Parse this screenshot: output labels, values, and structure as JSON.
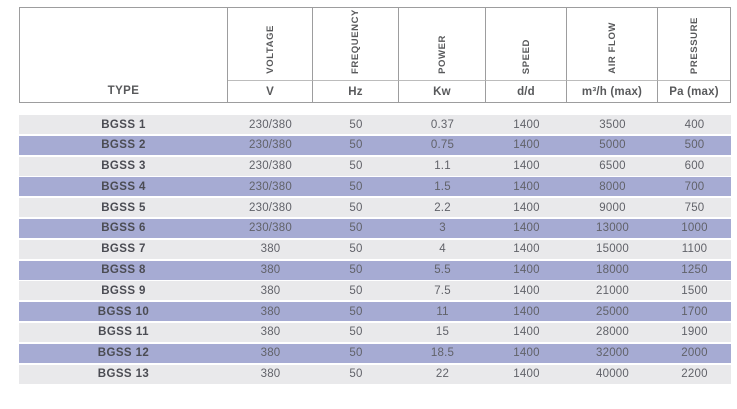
{
  "table": {
    "columns": [
      {
        "key": "type",
        "label": "TYPE",
        "unit": ""
      },
      {
        "key": "voltage",
        "label": "VOLTAGE",
        "unit": "V"
      },
      {
        "key": "frequency",
        "label": "FREQUENCY",
        "unit": "Hz"
      },
      {
        "key": "power",
        "label": "POWER",
        "unit": "Kw"
      },
      {
        "key": "speed",
        "label": "SPEED",
        "unit": "d/d"
      },
      {
        "key": "air-flow",
        "label": "AIR FLOW",
        "unit": "m³/h (max)"
      },
      {
        "key": "pressure",
        "label": "PRESSURE",
        "unit": "Pa (max)"
      }
    ],
    "rows": [
      [
        "BGSS 1",
        "230/380",
        "50",
        "0.37",
        "1400",
        "3500",
        "400"
      ],
      [
        "BGSS 2",
        "230/380",
        "50",
        "0.75",
        "1400",
        "5000",
        "500"
      ],
      [
        "BGSS 3",
        "230/380",
        "50",
        "1.1",
        "1400",
        "6500",
        "600"
      ],
      [
        "BGSS 4",
        "230/380",
        "50",
        "1.5",
        "1400",
        "8000",
        "700"
      ],
      [
        "BGSS 5",
        "230/380",
        "50",
        "2.2",
        "1400",
        "9000",
        "750"
      ],
      [
        "BGSS 6",
        "230/380",
        "50",
        "3",
        "1400",
        "13000",
        "1000"
      ],
      [
        "BGSS 7",
        "380",
        "50",
        "4",
        "1400",
        "15000",
        "1100"
      ],
      [
        "BGSS 8",
        "380",
        "50",
        "5.5",
        "1400",
        "18000",
        "1250"
      ],
      [
        "BGSS 9",
        "380",
        "50",
        "7.5",
        "1400",
        "21000",
        "1500"
      ],
      [
        "BGSS 10",
        "380",
        "50",
        "11",
        "1400",
        "25000",
        "1700"
      ],
      [
        "BGSS 11",
        "380",
        "50",
        "15",
        "1400",
        "28000",
        "1900"
      ],
      [
        "BGSS 12",
        "380",
        "50",
        "18.5",
        "1400",
        "32000",
        "2000"
      ],
      [
        "BGSS 13",
        "380",
        "50",
        "22",
        "1400",
        "40000",
        "2200"
      ]
    ],
    "colors": {
      "row_gray": "#e9e9eb",
      "row_lavender": "#a6abd3",
      "border": "#9d9d9e",
      "border_light": "#bcbcbc",
      "header_text": "#58595b",
      "cell_text": "#616269",
      "type_text": "#4b4c53"
    }
  }
}
